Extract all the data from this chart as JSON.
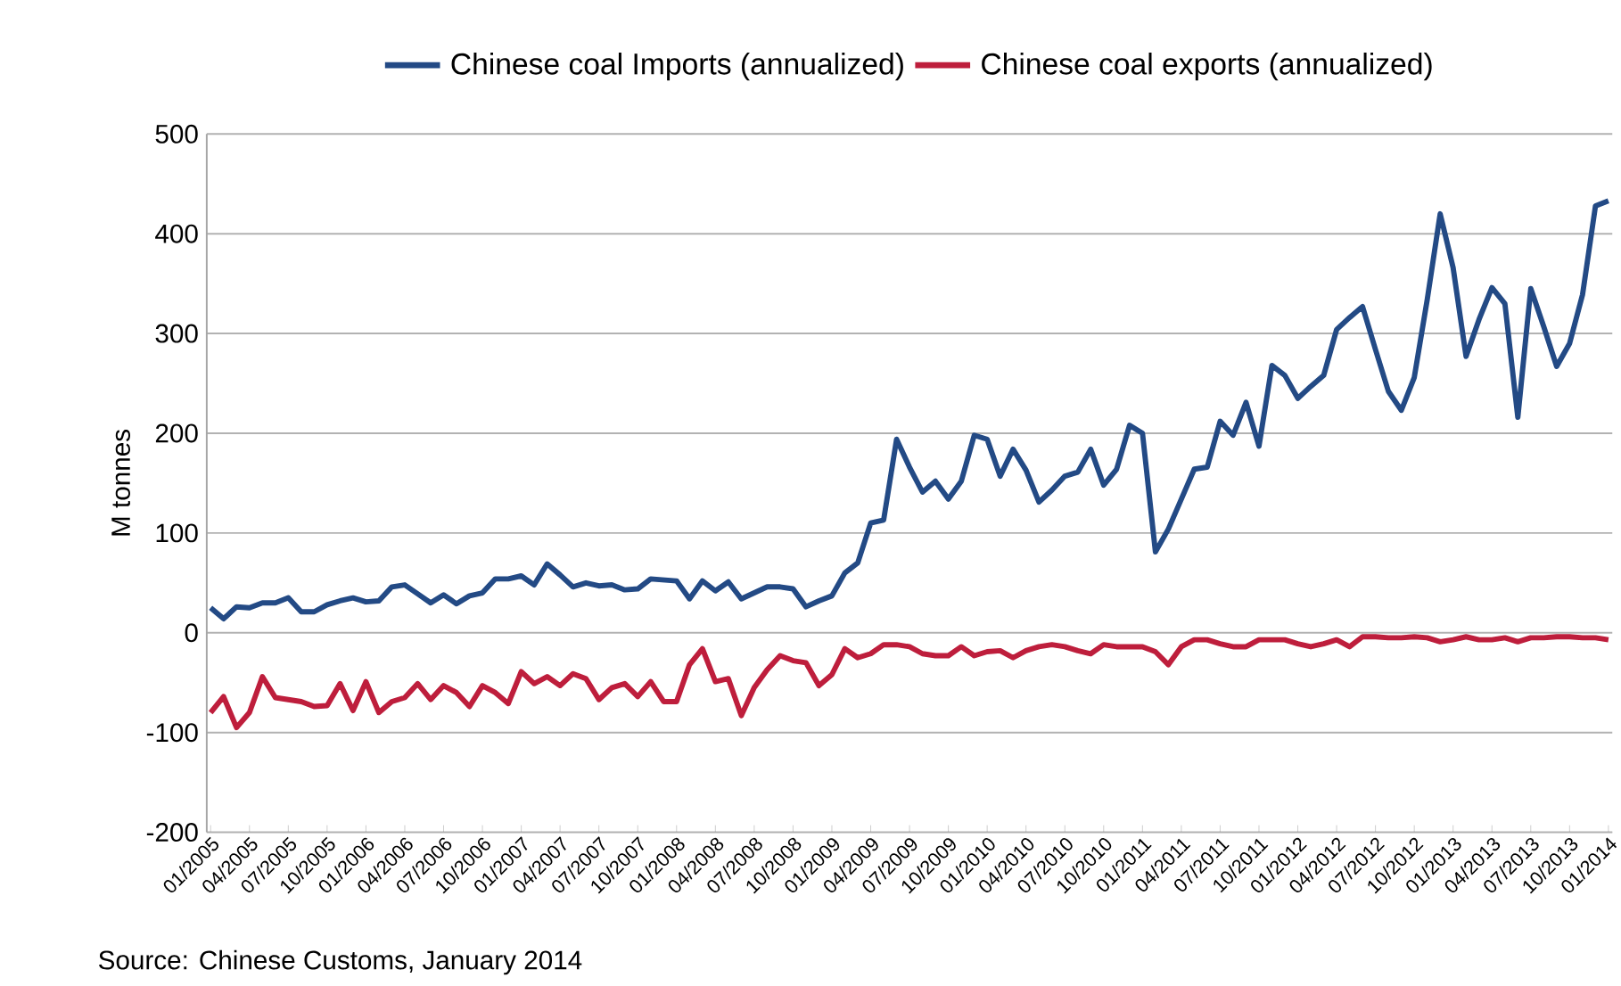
{
  "chart_data": {
    "type": "line",
    "ylabel": "M tonnes",
    "categories": [
      "01/2005",
      null,
      null,
      "04/2005",
      null,
      null,
      "07/2005",
      null,
      null,
      "10/2005",
      null,
      null,
      "01/2006",
      null,
      null,
      "04/2006",
      null,
      null,
      "07/2006",
      null,
      null,
      "10/2006",
      null,
      null,
      "01/2007",
      null,
      null,
      "04/2007",
      null,
      null,
      "07/2007",
      null,
      null,
      "10/2007",
      null,
      null,
      "01/2008",
      null,
      null,
      "04/2008",
      null,
      null,
      "07/2008",
      null,
      null,
      "10/2008",
      null,
      null,
      "01/2009",
      null,
      null,
      "04/2009",
      null,
      null,
      "07/2009",
      null,
      null,
      "10/2009",
      null,
      null,
      "01/2010",
      null,
      null,
      "04/2010",
      null,
      null,
      "07/2010",
      null,
      null,
      "10/2010",
      null,
      null,
      "01/2011",
      null,
      null,
      "04/2011",
      null,
      null,
      "07/2011",
      null,
      null,
      "10/2011",
      null,
      null,
      "01/2012",
      null,
      null,
      "04/2012",
      null,
      null,
      "07/2012",
      null,
      null,
      "10/2012",
      null,
      null,
      "01/2013",
      null,
      null,
      "04/2013",
      null,
      null,
      "07/2013",
      null,
      null,
      "10/2013",
      null,
      null,
      "01/2014"
    ],
    "series": [
      {
        "name": "Chinese coal Imports (annualized)",
        "color": "#234a85",
        "values": [
          25,
          14,
          26,
          25,
          30,
          30,
          35,
          21,
          21,
          28,
          32,
          35,
          31,
          32,
          46,
          48,
          39,
          30,
          38,
          29,
          37,
          40,
          54,
          54,
          57,
          48,
          69,
          58,
          46,
          50,
          47,
          48,
          43,
          44,
          54,
          53,
          52,
          34,
          52,
          42,
          51,
          34,
          40,
          46,
          46,
          44,
          26,
          32,
          37,
          60,
          70,
          110,
          113,
          194,
          166,
          141,
          152,
          134,
          152,
          198,
          194,
          157,
          184,
          163,
          131,
          143,
          157,
          161,
          184,
          148,
          164,
          208,
          200,
          81,
          104,
          134,
          164,
          166,
          212,
          198,
          231,
          187,
          268,
          258,
          235,
          247,
          258,
          304,
          316,
          327,
          284,
          242,
          223,
          256,
          334,
          420,
          366,
          277,
          314,
          346,
          330,
          216,
          345,
          307,
          267,
          290,
          339,
          428,
          433
        ]
      },
      {
        "name": "Chinese coal exports (annualized)",
        "color": "#be1e3c",
        "values": [
          -80,
          -64,
          -95,
          -80,
          -44,
          -65,
          -67,
          -69,
          -74,
          -73,
          -51,
          -78,
          -49,
          -80,
          -69,
          -65,
          -51,
          -67,
          -53,
          -60,
          -74,
          -53,
          -60,
          -71,
          -39,
          -51,
          -44,
          -53,
          -41,
          -46,
          -67,
          -55,
          -51,
          -64,
          -49,
          -69,
          -69,
          -32,
          -16,
          -49,
          -46,
          -83,
          -55,
          -37,
          -23,
          -28,
          -30,
          -53,
          -42,
          -16,
          -25,
          -21,
          -12,
          -12,
          -14,
          -21,
          -23,
          -23,
          -14,
          -23,
          -19,
          -18,
          -25,
          -18,
          -14,
          -12,
          -14,
          -18,
          -21,
          -12,
          -14,
          -14,
          -14,
          -19,
          -32,
          -14,
          -7,
          -7,
          -11,
          -14,
          -14,
          -7,
          -7,
          -7,
          -11,
          -14,
          -11,
          -7,
          -14,
          -4,
          -4,
          -5,
          -5,
          -4,
          -5,
          -9,
          -7,
          -4,
          -7,
          -7,
          -5,
          -9,
          -5,
          -5,
          -4,
          -4,
          -5,
          -5,
          -7
        ]
      }
    ],
    "ylim": [
      -200,
      500
    ],
    "yticks": [
      -200,
      -100,
      0,
      100,
      200,
      300,
      400,
      500
    ],
    "grid": "y",
    "legend": "top",
    "marker": "none",
    "line_style": "solid",
    "annotations": [
      "Source: Chinese Customs, January 2014"
    ]
  }
}
